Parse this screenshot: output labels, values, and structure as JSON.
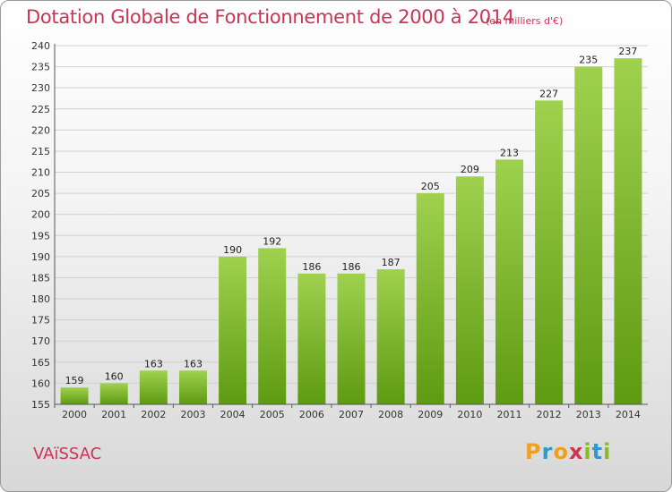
{
  "header": {
    "title": "Dotation Globale de Fonctionnement de 2000 à 2014",
    "unit": "(en milliers d'€)"
  },
  "footer": {
    "commune": "VAïSSAC",
    "logo_letters": [
      "P",
      "r",
      "o",
      "x",
      "i",
      "t",
      "i"
    ],
    "logo_colors": [
      "#f0a020",
      "#3399cc",
      "#f0a020",
      "#cc3355",
      "#88bb22",
      "#3399cc",
      "#88bb22"
    ]
  },
  "colors": {
    "bar_light": "#9fd14f",
    "bar_dark": "#5e9a12",
    "grid": "#d0d0d0",
    "axis": "#555555",
    "accent": "#cc3355"
  },
  "chart_data": {
    "type": "bar",
    "title": "Dotation Globale de Fonctionnement de 2000 à 2014",
    "subtitle": "(en milliers d'€)",
    "categories": [
      "2000",
      "2001",
      "2002",
      "2003",
      "2004",
      "2005",
      "2006",
      "2007",
      "2008",
      "2009",
      "2010",
      "2011",
      "2012",
      "2013",
      "2014"
    ],
    "values": [
      159,
      160,
      163,
      163,
      190,
      192,
      186,
      186,
      187,
      205,
      209,
      213,
      227,
      235,
      237
    ],
    "ylim": [
      155,
      240
    ],
    "yticks": [
      155,
      160,
      165,
      170,
      175,
      180,
      185,
      190,
      195,
      200,
      205,
      210,
      215,
      220,
      225,
      230,
      235,
      240
    ],
    "grid": true,
    "legend": "none"
  }
}
